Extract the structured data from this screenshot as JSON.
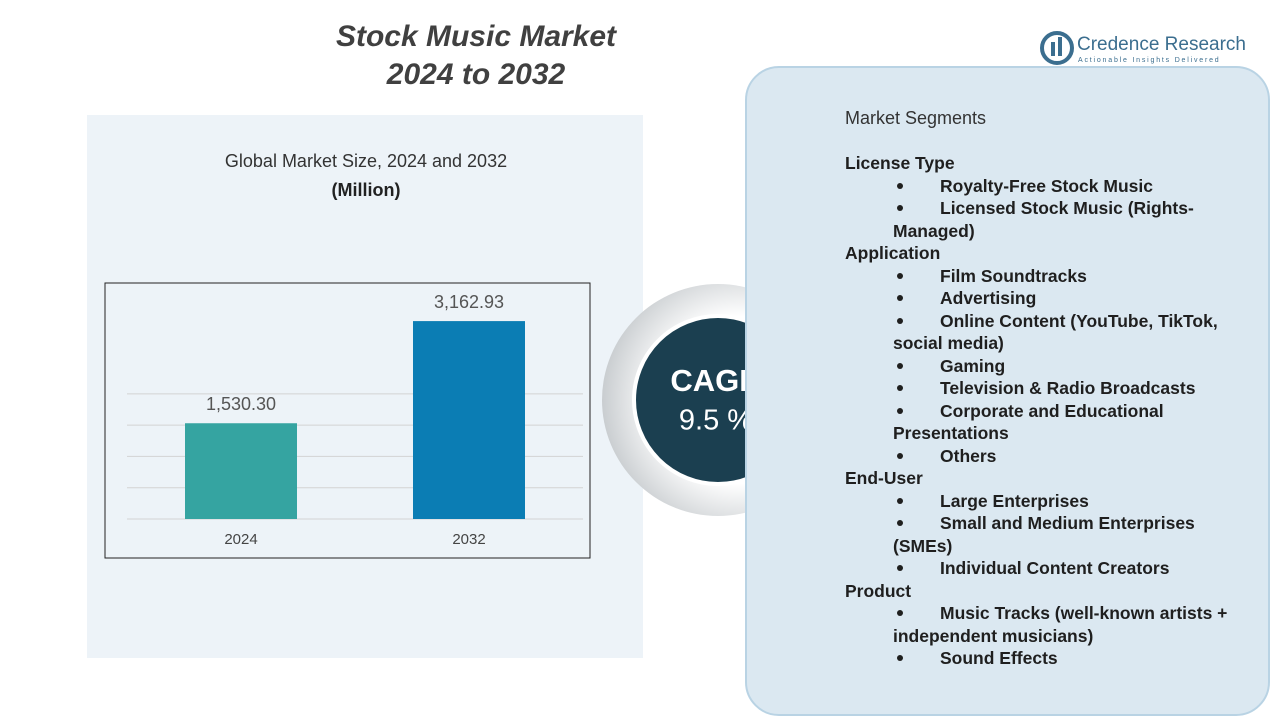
{
  "header": {
    "title_line1": "Stock Music Market",
    "title_line2": "2024 to 2032"
  },
  "logo": {
    "name": "Credence Research",
    "tagline": "Actionable Insights Delivered"
  },
  "chart_data": {
    "type": "bar",
    "title": "Global Market Size, 2024 and 2032",
    "subtitle": "(Million)",
    "categories": [
      "2024",
      "2032"
    ],
    "values": [
      1530.3,
      3162.93
    ],
    "value_labels": [
      "1,530.30",
      "3,162.93"
    ],
    "colors": [
      "#35a4a1",
      "#0b7db4"
    ],
    "ylim": [
      0,
      3500
    ],
    "yticks": [
      0,
      500,
      1000,
      1500,
      2000
    ],
    "grid": true
  },
  "cagr": {
    "label": "CAGR",
    "value": "9.5 %"
  },
  "segments": {
    "title": "Market Segments",
    "groups": [
      {
        "name": "License Type",
        "items": [
          "Royalty-Free Stock Music",
          "Licensed Stock Music (Rights-Managed)"
        ]
      },
      {
        "name": "Application",
        "items": [
          "Film Soundtracks",
          "Advertising",
          "Online Content (YouTube, TikTok, social media)",
          "Gaming",
          "Television & Radio Broadcasts",
          "Corporate and Educational Presentations",
          "Others"
        ]
      },
      {
        "name": "End-User",
        "items": [
          "Large Enterprises",
          "Small and Medium Enterprises (SMEs)",
          "Individual Content Creators"
        ]
      },
      {
        "name": "Product",
        "items": [
          "Music Tracks (well-known artists + independent musicians)",
          "Sound Effects"
        ]
      }
    ]
  }
}
